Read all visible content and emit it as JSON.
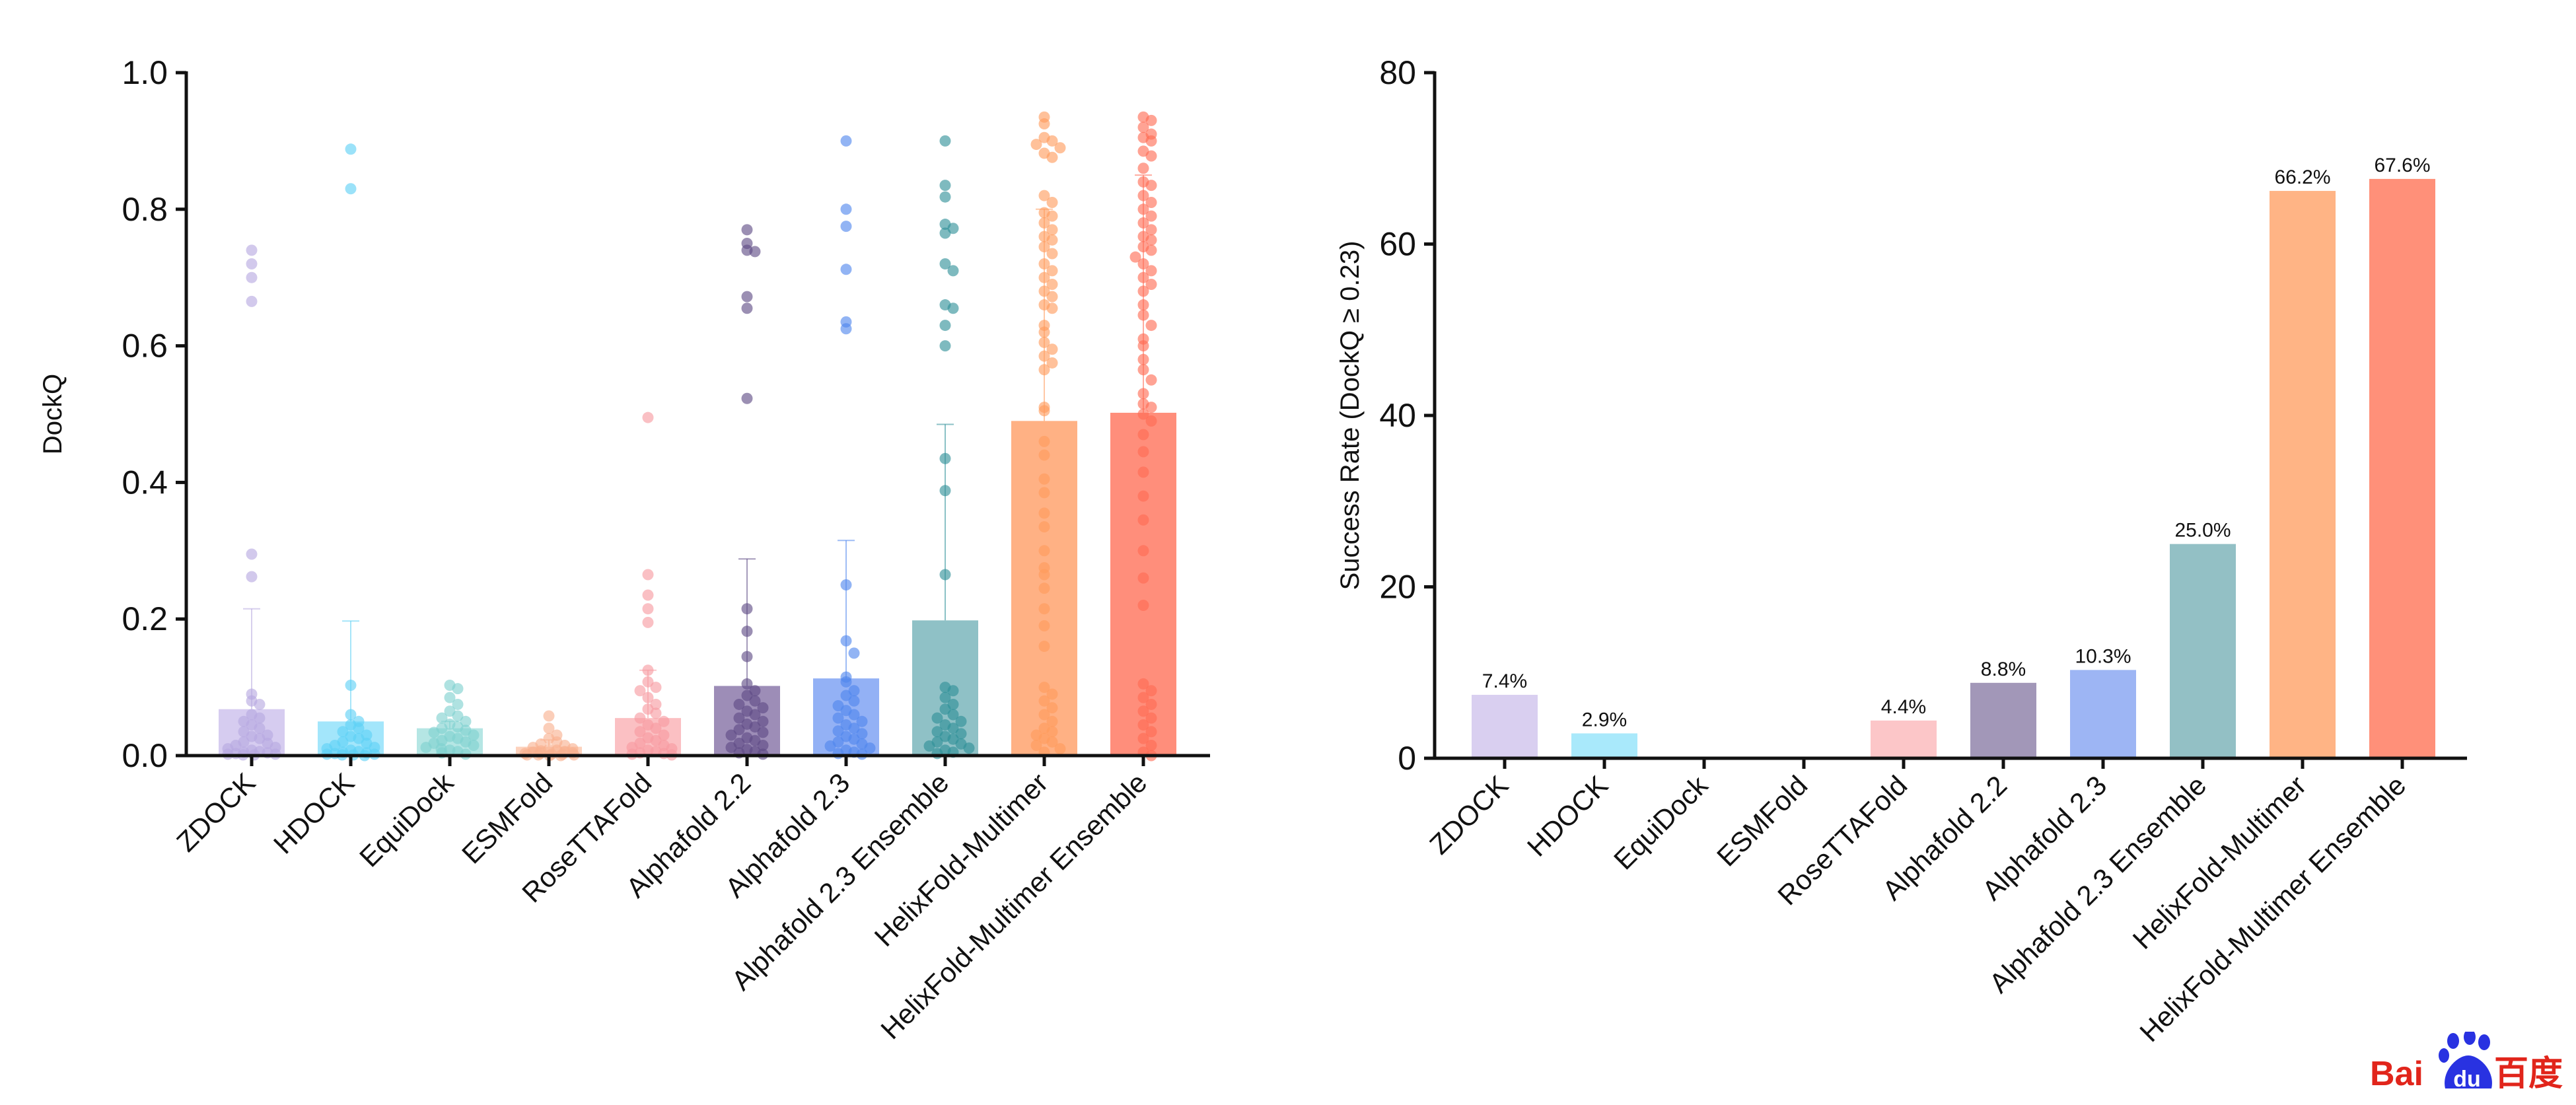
{
  "colors": {
    "axis": "#111111",
    "text": "#111111",
    "methods": [
      "#b7a8e0",
      "#5ed0f5",
      "#7ed1cf",
      "#f9b08e",
      "#f79aa0",
      "#5d4a85",
      "#4f86ee",
      "#2e8f98",
      "#ff9b5c",
      "#ff6a52"
    ],
    "bars_left": [
      "#d6ccf0",
      "#a3e6fb",
      "#b5e6e4",
      "#fdd2bd",
      "#fbc0c3",
      "#9d8db7",
      "#93b1f5",
      "#8fc1c6",
      "#ffb184",
      "#ff8e7b"
    ],
    "bars_right": [
      "#d9cff0",
      "#a9e9fb",
      "#bfe9e7",
      "#fdd6c2",
      "#fcc6c8",
      "#a297b8",
      "#9db5f4",
      "#93c0c5",
      "#ffb485",
      "#ff9079"
    ],
    "logo_red": "#e1251b",
    "logo_blue": "#2932e1"
  },
  "chart_data": [
    {
      "type": "bar",
      "subtype": "bar-with-scatter-points-and-error-bars",
      "categories": [
        "ZDOCK",
        "HDOCK",
        "EquiDock",
        "ESMFold",
        "RoseTTAFold",
        "Alphafold 2.2",
        "Alphafold 2.3",
        "Alphafold 2.3 Ensemble",
        "HelixFold-Multimer",
        "HelixFold-Multimer Ensemble"
      ],
      "values": [
        0.068,
        0.05,
        0.04,
        0.013,
        0.055,
        0.102,
        0.113,
        0.198,
        0.49,
        0.502
      ],
      "error_upper": [
        0.215,
        0.197,
        0.05,
        0.023,
        0.125,
        0.288,
        0.315,
        0.485,
        0.8,
        0.85
      ],
      "points": [
        [
          0.74,
          0.72,
          0.7,
          0.665,
          0.295,
          0.262,
          0.09,
          0.08,
          0.075,
          0.06,
          0.055,
          0.05,
          0.045,
          0.04,
          0.035,
          0.03,
          0.028,
          0.025,
          0.02,
          0.018,
          0.015,
          0.012,
          0.01,
          0.008,
          0.006,
          0.005,
          0.004,
          0.003,
          0.002,
          0.002,
          0.001,
          0.001
        ],
        [
          0.888,
          0.83,
          0.103,
          0.06,
          0.05,
          0.045,
          0.04,
          0.035,
          0.03,
          0.028,
          0.025,
          0.02,
          0.018,
          0.015,
          0.012,
          0.01,
          0.008,
          0.006,
          0.005,
          0.004,
          0.003,
          0.002,
          0.002,
          0.001,
          0.001,
          0.0
        ],
        [
          0.103,
          0.098,
          0.085,
          0.075,
          0.065,
          0.058,
          0.055,
          0.05,
          0.046,
          0.042,
          0.04,
          0.037,
          0.034,
          0.03,
          0.028,
          0.025,
          0.022,
          0.02,
          0.018,
          0.015,
          0.012,
          0.01,
          0.008,
          0.006,
          0.004,
          0.002
        ],
        [
          0.058,
          0.04,
          0.03,
          0.025,
          0.02,
          0.017,
          0.015,
          0.012,
          0.01,
          0.009,
          0.008,
          0.007,
          0.006,
          0.005,
          0.004,
          0.003,
          0.003,
          0.002,
          0.002,
          0.001,
          0.001,
          0.001,
          0.0,
          0.0
        ],
        [
          0.495,
          0.265,
          0.235,
          0.215,
          0.195,
          0.125,
          0.108,
          0.1,
          0.095,
          0.085,
          0.075,
          0.068,
          0.062,
          0.055,
          0.05,
          0.045,
          0.04,
          0.035,
          0.03,
          0.026,
          0.022,
          0.018,
          0.015,
          0.012,
          0.01,
          0.008,
          0.006,
          0.004,
          0.003,
          0.002,
          0.001
        ],
        [
          0.77,
          0.75,
          0.74,
          0.738,
          0.672,
          0.655,
          0.523,
          0.215,
          0.182,
          0.145,
          0.105,
          0.095,
          0.088,
          0.08,
          0.075,
          0.07,
          0.065,
          0.06,
          0.055,
          0.05,
          0.046,
          0.042,
          0.038,
          0.034,
          0.03,
          0.026,
          0.022,
          0.018,
          0.015,
          0.012,
          0.009,
          0.006,
          0.004,
          0.002
        ],
        [
          0.9,
          0.8,
          0.775,
          0.712,
          0.635,
          0.625,
          0.25,
          0.168,
          0.15,
          0.115,
          0.108,
          0.095,
          0.088,
          0.08,
          0.073,
          0.066,
          0.06,
          0.055,
          0.05,
          0.045,
          0.04,
          0.036,
          0.032,
          0.028,
          0.024,
          0.02,
          0.017,
          0.014,
          0.011,
          0.008,
          0.005,
          0.003,
          0.002
        ],
        [
          0.9,
          0.835,
          0.818,
          0.778,
          0.772,
          0.765,
          0.72,
          0.71,
          0.66,
          0.655,
          0.63,
          0.6,
          0.435,
          0.388,
          0.265,
          0.1,
          0.095,
          0.085,
          0.075,
          0.068,
          0.06,
          0.055,
          0.05,
          0.045,
          0.04,
          0.035,
          0.032,
          0.028,
          0.024,
          0.02,
          0.017,
          0.014,
          0.011,
          0.008,
          0.005,
          0.003
        ],
        [
          0.935,
          0.925,
          0.905,
          0.9,
          0.895,
          0.89,
          0.882,
          0.876,
          0.82,
          0.81,
          0.795,
          0.79,
          0.78,
          0.77,
          0.76,
          0.755,
          0.745,
          0.735,
          0.72,
          0.71,
          0.7,
          0.69,
          0.68,
          0.672,
          0.66,
          0.655,
          0.63,
          0.62,
          0.605,
          0.595,
          0.585,
          0.575,
          0.565,
          0.51,
          0.505,
          0.46,
          0.44,
          0.405,
          0.385,
          0.355,
          0.335,
          0.3,
          0.275,
          0.265,
          0.245,
          0.215,
          0.19,
          0.16,
          0.1,
          0.09,
          0.08,
          0.07,
          0.06,
          0.05,
          0.04,
          0.035,
          0.03,
          0.025,
          0.02,
          0.015,
          0.01,
          0.005
        ],
        [
          0.935,
          0.93,
          0.92,
          0.91,
          0.905,
          0.9,
          0.885,
          0.878,
          0.86,
          0.84,
          0.835,
          0.82,
          0.81,
          0.8,
          0.79,
          0.78,
          0.77,
          0.76,
          0.755,
          0.745,
          0.74,
          0.73,
          0.72,
          0.71,
          0.7,
          0.69,
          0.68,
          0.66,
          0.645,
          0.63,
          0.61,
          0.6,
          0.58,
          0.565,
          0.55,
          0.53,
          0.515,
          0.51,
          0.5,
          0.49,
          0.47,
          0.445,
          0.415,
          0.38,
          0.345,
          0.3,
          0.26,
          0.22,
          0.105,
          0.095,
          0.085,
          0.075,
          0.065,
          0.055,
          0.045,
          0.035,
          0.025,
          0.015,
          0.005,
          0.0
        ]
      ],
      "title": "",
      "xlabel": "",
      "ylabel": "DockQ",
      "ylim": [
        0,
        1
      ],
      "yticks": [
        "0.0",
        "0.2",
        "0.4",
        "0.6",
        "0.8",
        "1.0"
      ],
      "grid": false,
      "legend": "none"
    },
    {
      "type": "bar",
      "categories": [
        "ZDOCK",
        "HDOCK",
        "EquiDock",
        "ESMFold",
        "RoseTTAFold",
        "Alphafold 2.2",
        "Alphafold 2.3",
        "Alphafold 2.3 Ensemble",
        "HelixFold-Multimer",
        "HelixFold-Multimer Ensemble"
      ],
      "values": [
        7.4,
        2.9,
        0,
        0,
        4.4,
        8.8,
        10.3,
        25.0,
        66.2,
        67.6
      ],
      "data_labels": [
        "7.4%",
        "2.9%",
        "",
        "",
        "4.4%",
        "8.8%",
        "10.3%",
        "25.0%",
        "66.2%",
        "67.6%"
      ],
      "title": "",
      "xlabel": "",
      "ylabel": "Success Rate (DockQ ≥ 0.23)",
      "ylim": [
        0,
        80
      ],
      "yticks": [
        "0",
        "20",
        "40",
        "60",
        "80"
      ],
      "grid": false,
      "legend": "none"
    }
  ],
  "logo": {
    "latin": "Bai",
    "du": "du",
    "chinese": "百度"
  }
}
